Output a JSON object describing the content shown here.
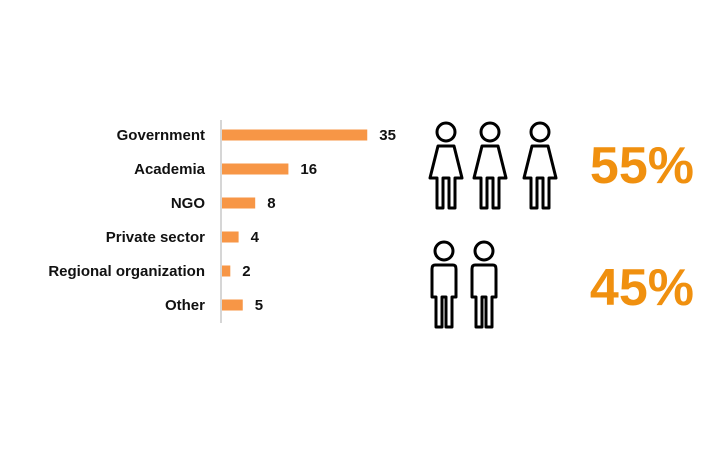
{
  "chart_data": {
    "type": "bar",
    "orientation": "horizontal",
    "categories": [
      "Government",
      "Academia",
      "NGO",
      "Private sector",
      "Regional organization",
      "Other"
    ],
    "values": [
      35,
      16,
      8,
      4,
      2,
      5
    ],
    "bar_color": "#F79646",
    "title": "",
    "xlabel": "",
    "ylabel": "",
    "grid": false,
    "legend": "none"
  },
  "gender": {
    "female": {
      "percent_label": "55%",
      "icon": "female-person-icon",
      "icon_count": 3
    },
    "male": {
      "percent_label": "45%",
      "icon": "male-person-icon",
      "icon_count": 2
    },
    "percent_color": "#F0900F"
  }
}
